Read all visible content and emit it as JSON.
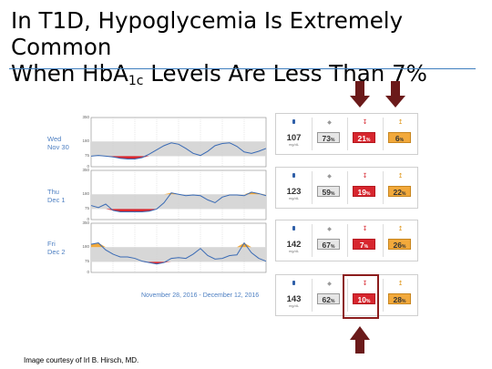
{
  "title": {
    "line1": "In T1D, Hypoglycemia Is Extremely Common",
    "line2_pre": "When HbA",
    "line2_sub": "1c",
    "line2_post": " Levels Are Less Than 7%"
  },
  "colors": {
    "accent": "#4d7fc2",
    "hypo": "#d7262e",
    "hyper": "#f2a93b",
    "arrow": "#6b1a1a"
  },
  "chart_data": {
    "type": "line",
    "ylim": [
      0,
      350
    ],
    "yticks": [
      350,
      180,
      75,
      0
    ],
    "target_range": [
      75,
      180
    ],
    "x": [
      0,
      1,
      2,
      3,
      4,
      5,
      6,
      7,
      8,
      9,
      10,
      11,
      12,
      13,
      14,
      15,
      16,
      17,
      18,
      19,
      20,
      21,
      22,
      23,
      24
    ],
    "days": [
      {
        "weekday": "Wed",
        "date": "Nov 30",
        "glucose": [
          75,
          80,
          75,
          70,
          60,
          55,
          55,
          65,
          90,
          120,
          150,
          170,
          160,
          130,
          95,
          80,
          110,
          150,
          165,
          170,
          145,
          105,
          95,
          110,
          130
        ]
      },
      {
        "weekday": "Thu",
        "date": "Dec 1",
        "glucose": [
          100,
          85,
          110,
          65,
          55,
          55,
          55,
          55,
          60,
          75,
          120,
          190,
          180,
          170,
          175,
          170,
          140,
          120,
          160,
          175,
          175,
          170,
          195,
          185,
          170
        ]
      },
      {
        "weekday": "Fri",
        "date": "Dec 2",
        "glucose": [
          200,
          210,
          160,
          130,
          110,
          110,
          100,
          80,
          70,
          60,
          70,
          100,
          105,
          100,
          130,
          170,
          120,
          95,
          100,
          120,
          125,
          210,
          140,
          100,
          80
        ]
      }
    ],
    "date_range": "November 28, 2016 - December 12, 2016"
  },
  "stats": [
    {
      "mean": "107",
      "in_range": "73",
      "low": "21",
      "high": "6"
    },
    {
      "mean": "123",
      "in_range": "59",
      "low": "19",
      "high": "22"
    },
    {
      "mean": "142",
      "in_range": "67",
      "low": "7",
      "high": "26"
    },
    {
      "mean": "143",
      "in_range": "62",
      "low": "10",
      "high": "28"
    }
  ],
  "units": {
    "mgdl": "mg/dL",
    "percent": "%"
  },
  "icons": {
    "mean": "glucose-meter-icon",
    "in_range": "diamond-icon",
    "low": "down-arrow-icon",
    "high": "up-arrow-icon"
  },
  "footer": "Image courtesy of Irl B. Hirsch, MD."
}
